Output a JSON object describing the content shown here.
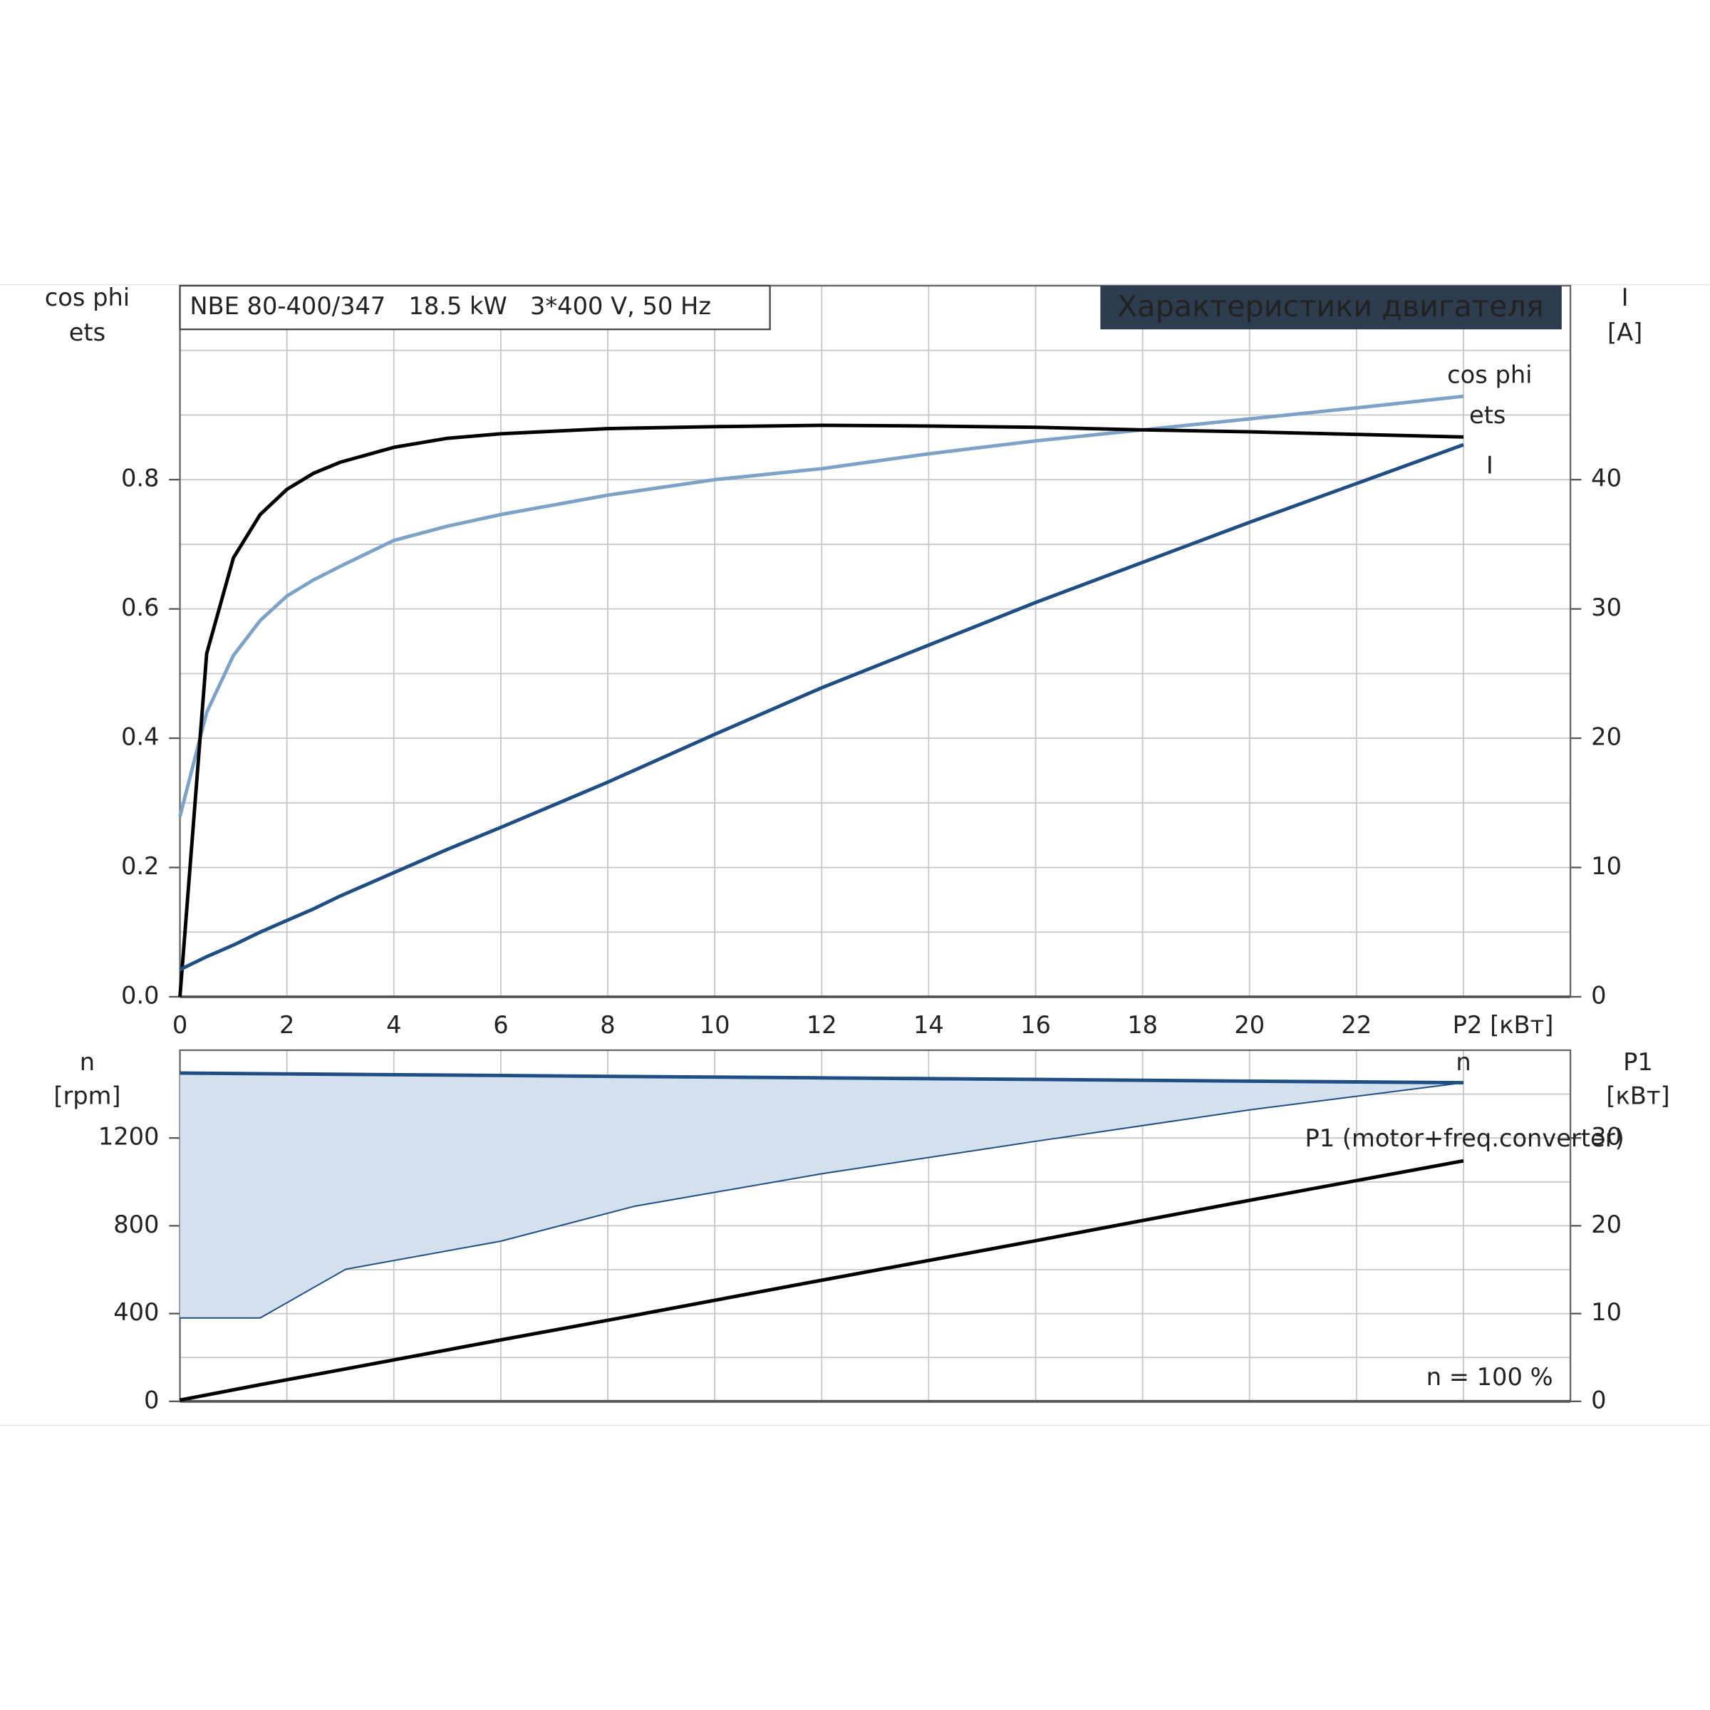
{
  "chart_data": [
    {
      "type": "line",
      "title": "NBE 80-400/347   18.5 kW   3*400 V, 50 Hz",
      "subtitle": "Характеристики двигателя",
      "ylabel": [
        "cos phi",
        "ets"
      ],
      "y2label": [
        "I",
        "[A]"
      ],
      "x": [
        0,
        0.5,
        1,
        1.5,
        2,
        2.5,
        3,
        4,
        5,
        6,
        8,
        10,
        12,
        14,
        16,
        18,
        20,
        22,
        24
      ],
      "xlim": [
        0,
        26
      ],
      "xticks": [
        0,
        2,
        4,
        6,
        8,
        10,
        12,
        14,
        16,
        18,
        20,
        22,
        {
          "value": 24,
          "label": "P2 [кВт]"
        }
      ],
      "ylim": [
        0,
        1.1
      ],
      "yticks": [
        {
          "value": 0,
          "label": "0.0"
        },
        0.2,
        0.4,
        0.6,
        0.8
      ],
      "yminor": [
        0.1,
        0.3,
        0.5,
        0.7,
        0.9,
        1.0
      ],
      "y2lim": [
        0,
        55
      ],
      "y2ticks": [
        0,
        10,
        20,
        30,
        40
      ],
      "grid": true,
      "series": [
        {
          "name": "cos phi",
          "color": "#7da2c8",
          "values": [
            0.279,
            0.44,
            0.528,
            0.582,
            0.62,
            0.645,
            0.666,
            0.706,
            0.728,
            0.746,
            0.776,
            0.8,
            0.817,
            0.84,
            0.86,
            0.877,
            0.894,
            0.911,
            0.929
          ]
        },
        {
          "name": "ets",
          "color": "#000000",
          "values": [
            0,
            0.531,
            0.679,
            0.746,
            0.785,
            0.81,
            0.827,
            0.85,
            0.864,
            0.871,
            0.879,
            0.882,
            0.884,
            0.883,
            0.881,
            0.877,
            0.874,
            0.87,
            0.866
          ]
        },
        {
          "name": "I",
          "color": "#1f4e85",
          "axis": "y2",
          "values": [
            2.1,
            3.1,
            4.0,
            5.0,
            5.9,
            6.8,
            7.8,
            9.6,
            11.4,
            13.1,
            16.6,
            20.3,
            23.9,
            27.2,
            30.5,
            33.6,
            36.7,
            39.7,
            42.7
          ]
        }
      ]
    },
    {
      "type": "line",
      "ylabel": [
        "n",
        "[rpm]"
      ],
      "y2label": [
        "P1",
        "[кВт]"
      ],
      "x": [
        0,
        1.5,
        3.1,
        6,
        8.5,
        12,
        16,
        20,
        24
      ],
      "xlim": [
        0,
        26
      ],
      "xgrid": [
        0,
        2,
        4,
        6,
        8,
        10,
        12,
        14,
        16,
        18,
        20,
        22,
        24
      ],
      "ylim": [
        0,
        1600
      ],
      "yticks": [
        0,
        400,
        800,
        1200
      ],
      "yminor": [
        200,
        600,
        1000,
        1400
      ],
      "y2lim": [
        0,
        40
      ],
      "y2ticks": [
        0,
        10,
        20,
        30
      ],
      "grid": true,
      "annotations": [
        "n = 100 %"
      ],
      "series": [
        {
          "name": "n",
          "color": "#1f4e85",
          "band_color": "#d3e0ee",
          "values": [
            1496,
            1493,
            1490,
            1485,
            1480,
            1474,
            1467,
            1459,
            1452
          ],
          "lower": [
            380,
            380,
            602,
            730,
            889,
            1037,
            1185,
            1328,
            1452
          ]
        },
        {
          "name": "P1 (motor+freq.converter)",
          "color": "#000000",
          "axis": "y2",
          "values": [
            0.15,
            1.9,
            3.7,
            7.0,
            9.8,
            13.8,
            18.3,
            22.9,
            27.4
          ]
        }
      ]
    }
  ]
}
